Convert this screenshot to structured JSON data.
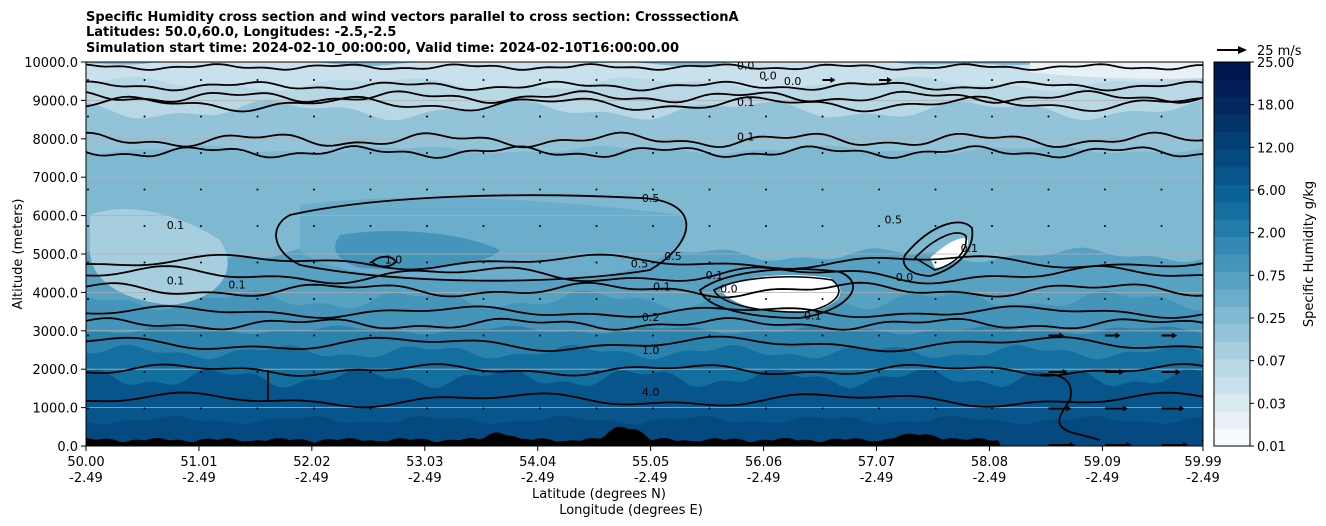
{
  "chart_data": {
    "type": "heatmap",
    "title_lines": [
      "Specific Humidity cross section and wind vectors parallel to cross section: CrosssectionA",
      "Latitudes: 50.0,60.0, Longitudes: -2.5,-2.5",
      "Simulation start time: 2024-02-10_00:00:00, Valid time: 2024-02-10T16:00:00.00"
    ],
    "ylabel": "Altitude (meters)",
    "xlabel_lat": "Latitude (degrees N)",
    "xlabel_lon": "Longitude (degrees E)",
    "ylim": [
      0,
      10000
    ],
    "xlim": [
      50.0,
      59.99
    ],
    "y_ticks": [
      "0.0",
      "1000.0",
      "2000.0",
      "3000.0",
      "4000.0",
      "5000.0",
      "6000.0",
      "7000.0",
      "8000.0",
      "9000.0",
      "10000.0"
    ],
    "x_ticks": [
      {
        "lat": 50.0,
        "lat_label": "50.00",
        "lon_label": "-2.49"
      },
      {
        "lat": 51.01,
        "lat_label": "51.01",
        "lon_label": "-2.49"
      },
      {
        "lat": 52.02,
        "lat_label": "52.02",
        "lon_label": "-2.49"
      },
      {
        "lat": 53.03,
        "lat_label": "53.03",
        "lon_label": "-2.49"
      },
      {
        "lat": 54.04,
        "lat_label": "54.04",
        "lon_label": "-2.49"
      },
      {
        "lat": 55.05,
        "lat_label": "55.05",
        "lon_label": "-2.49"
      },
      {
        "lat": 56.06,
        "lat_label": "56.06",
        "lon_label": "-2.49"
      },
      {
        "lat": 57.07,
        "lat_label": "57.07",
        "lon_label": "-2.49"
      },
      {
        "lat": 58.08,
        "lat_label": "58.08",
        "lon_label": "-2.49"
      },
      {
        "lat": 59.09,
        "lat_label": "59.09",
        "lon_label": "-2.49"
      },
      {
        "lat": 59.99,
        "lat_label": "59.99",
        "lon_label": "-2.49"
      }
    ],
    "grid": "horizontal",
    "colorbar": {
      "label": "Specific Humidity g/kg",
      "ticks": [
        "0.01",
        "0.03",
        "0.07",
        "0.25",
        "0.75",
        "2.00",
        "6.00",
        "12.00",
        "18.00",
        "25.00"
      ],
      "colors": [
        "#f7fbfd",
        "#e8f2f6",
        "#d9eaf1",
        "#c9e1ec",
        "#b8d8e5",
        "#a6cedf",
        "#93c3d8",
        "#7fb8d1",
        "#6badca",
        "#57a1c3",
        "#4595bb",
        "#3389b3",
        "#217ca9",
        "#136f9f",
        "#0b6296",
        "#07558b",
        "#044a80",
        "#033f75",
        "#02346a",
        "#01295f",
        "#011f56",
        "#00174d"
      ]
    },
    "quiver_key": {
      "label": "25 m/s",
      "speed": 25
    },
    "contour_labels": [
      {
        "text": "0.0",
        "lat": 55.9,
        "alt": 9800
      },
      {
        "text": "0.0",
        "lat": 56.1,
        "alt": 9550
      },
      {
        "text": "0.0",
        "lat": 56.32,
        "alt": 9400
      },
      {
        "text": "0.1",
        "lat": 55.9,
        "alt": 8850
      },
      {
        "text": "0.1",
        "lat": 55.9,
        "alt": 7950
      },
      {
        "text": "0.1",
        "lat": 50.8,
        "alt": 5650
      },
      {
        "text": "0.1",
        "lat": 50.8,
        "alt": 4200
      },
      {
        "text": "0.1",
        "lat": 51.35,
        "alt": 4100
      },
      {
        "text": "1.0",
        "lat": 52.75,
        "alt": 4750
      },
      {
        "text": "0.5",
        "lat": 55.05,
        "alt": 6350
      },
      {
        "text": "0.5",
        "lat": 54.95,
        "alt": 4650
      },
      {
        "text": "0.5",
        "lat": 55.25,
        "alt": 4850
      },
      {
        "text": "0.1",
        "lat": 55.15,
        "alt": 4050
      },
      {
        "text": "0.1",
        "lat": 55.62,
        "alt": 4350
      },
      {
        "text": "0.0",
        "lat": 55.75,
        "alt": 4000
      },
      {
        "text": "0.1",
        "lat": 56.5,
        "alt": 3300
      },
      {
        "text": "0.5",
        "lat": 57.22,
        "alt": 5800
      },
      {
        "text": "0.1",
        "lat": 57.9,
        "alt": 5050
      },
      {
        "text": "0.0",
        "lat": 57.32,
        "alt": 4300
      },
      {
        "text": "0.2",
        "lat": 55.05,
        "alt": 3250
      },
      {
        "text": "1.0",
        "lat": 55.05,
        "alt": 2400
      },
      {
        "text": "4.0",
        "lat": 55.05,
        "alt": 1300
      },
      {
        "text": "4.0",
        "lat": 60.05,
        "alt": 60
      }
    ]
  }
}
